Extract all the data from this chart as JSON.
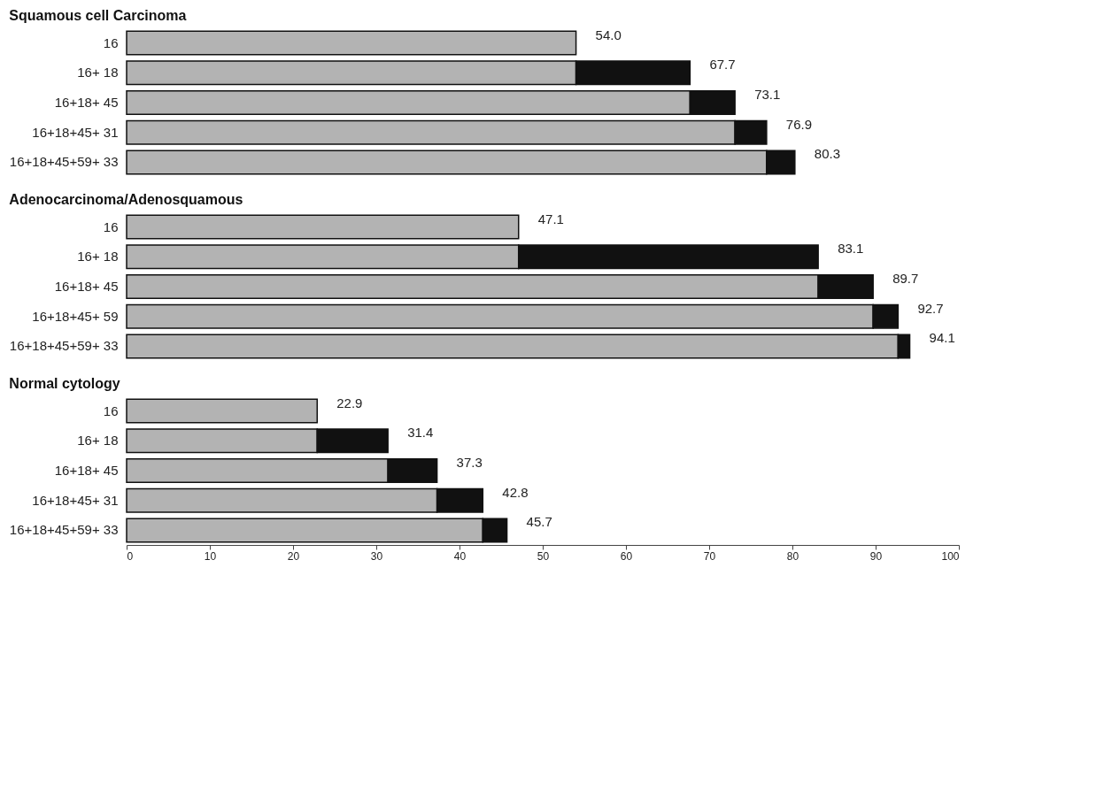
{
  "chart_data": [
    {
      "type": "bar",
      "orientation": "horizontal",
      "stacked": true,
      "title": "Squamous cell Carcinoma",
      "categories": [
        "16",
        "16+ 18",
        "16+18+ 45",
        "16+18+45+ 31",
        "16+18+45+59+ 33"
      ],
      "series": [
        {
          "color": "#b3b3b3",
          "values": [
            54.0,
            54.0,
            67.7,
            73.1,
            76.9
          ]
        },
        {
          "color": "#111111",
          "values": [
            null,
            13.7,
            5.4,
            3.8,
            3.4
          ]
        }
      ],
      "totals": [
        "54.0",
        "67.7",
        "73.1",
        "76.9",
        "80.3"
      ],
      "xlim": [
        0,
        100
      ],
      "xticks": [
        0,
        10,
        20,
        30,
        40,
        50,
        60,
        70,
        80,
        90,
        100
      ],
      "tick_labels": "y",
      "grid": false,
      "legend": false
    },
    {
      "type": "bar",
      "orientation": "horizontal",
      "stacked": true,
      "title": "Adenocarcinoma/Adenosquamous",
      "categories": [
        "16",
        "16+ 18",
        "16+18+ 45",
        "16+18+45+ 59",
        "16+18+45+59+ 33"
      ],
      "series": [
        {
          "color": "#b3b3b3",
          "values": [
            47.1,
            47.1,
            83.1,
            89.7,
            92.7
          ]
        },
        {
          "color": "#111111",
          "values": [
            null,
            36.0,
            6.6,
            3.0,
            1.4
          ]
        }
      ],
      "totals": [
        "47.1",
        "83.1",
        "89.7",
        "92.7",
        "94.1"
      ],
      "xlim": [
        0,
        100
      ],
      "xticks": [
        0,
        10,
        20,
        30,
        40,
        50,
        60,
        70,
        80,
        90,
        100
      ],
      "tick_labels": "y",
      "grid": false,
      "legend": false
    },
    {
      "type": "bar",
      "orientation": "horizontal",
      "stacked": true,
      "title": "Normal cytology",
      "categories": [
        "16",
        "16+ 18",
        "16+18+ 45",
        "16+18+45+ 31",
        "16+18+45+59+ 33"
      ],
      "series": [
        {
          "color": "#b3b3b3",
          "values": [
            22.9,
            22.9,
            31.4,
            37.3,
            42.8
          ]
        },
        {
          "color": "#111111",
          "values": [
            null,
            8.5,
            5.9,
            5.5,
            2.9
          ]
        }
      ],
      "totals": [
        "22.9",
        "31.4",
        "37.3",
        "42.8",
        "45.7"
      ],
      "xlim": [
        0,
        100
      ],
      "xticks": [
        0,
        10,
        20,
        30,
        40,
        50,
        60,
        70,
        80,
        90,
        100
      ],
      "grid": false,
      "legend": false
    }
  ]
}
